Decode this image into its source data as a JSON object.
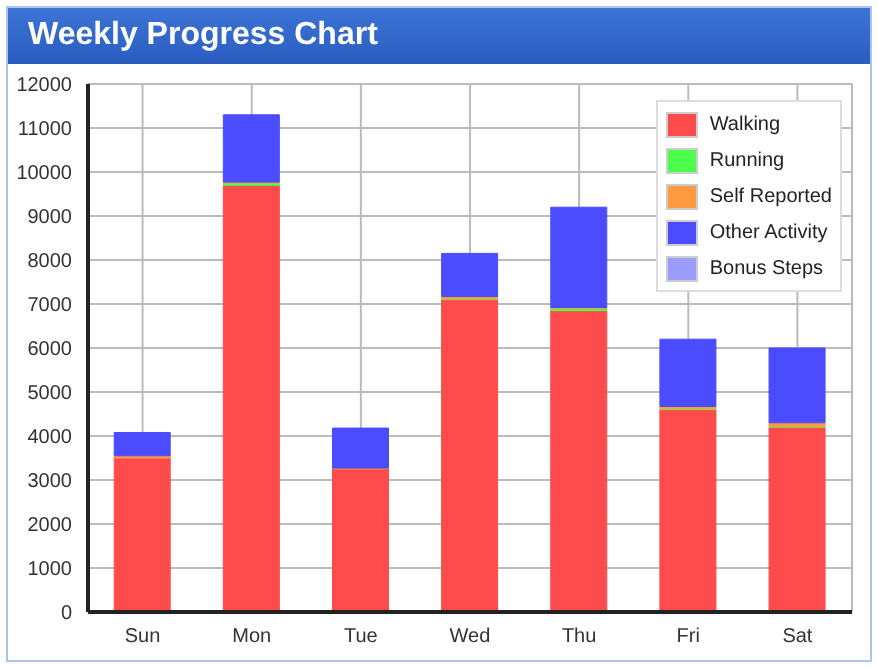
{
  "chart_data": {
    "type": "bar",
    "title": "Weekly Progress Chart",
    "stacked": true,
    "categories": [
      "Sun",
      "Mon",
      "Tue",
      "Wed",
      "Thu",
      "Fri",
      "Sat"
    ],
    "series": [
      {
        "name": "Walking",
        "color": "#ff4b4b",
        "values": [
          3500,
          9700,
          3250,
          7100,
          6850,
          4600,
          4200
        ]
      },
      {
        "name": "Running",
        "color": "#4dff4d",
        "values": [
          null,
          50,
          null,
          20,
          50,
          20,
          20
        ]
      },
      {
        "name": "Self Reported",
        "color": "#ff9a40",
        "values": [
          50,
          20,
          20,
          50,
          20,
          50,
          80
        ]
      },
      {
        "name": "Other Activity",
        "color": "#4b4bff",
        "values": [
          530,
          1530,
          910,
          980,
          2280,
          1530,
          1700
        ]
      },
      {
        "name": "Bonus Steps",
        "color": "#9a9aff",
        "values": [
          0,
          0,
          0,
          0,
          0,
          0,
          0
        ]
      }
    ],
    "ylim": [
      0,
      12000
    ],
    "yticks": [
      0,
      1000,
      2000,
      3000,
      4000,
      5000,
      6000,
      7000,
      8000,
      9000,
      10000,
      11000,
      12000
    ],
    "grid": true,
    "legend": "top right"
  }
}
